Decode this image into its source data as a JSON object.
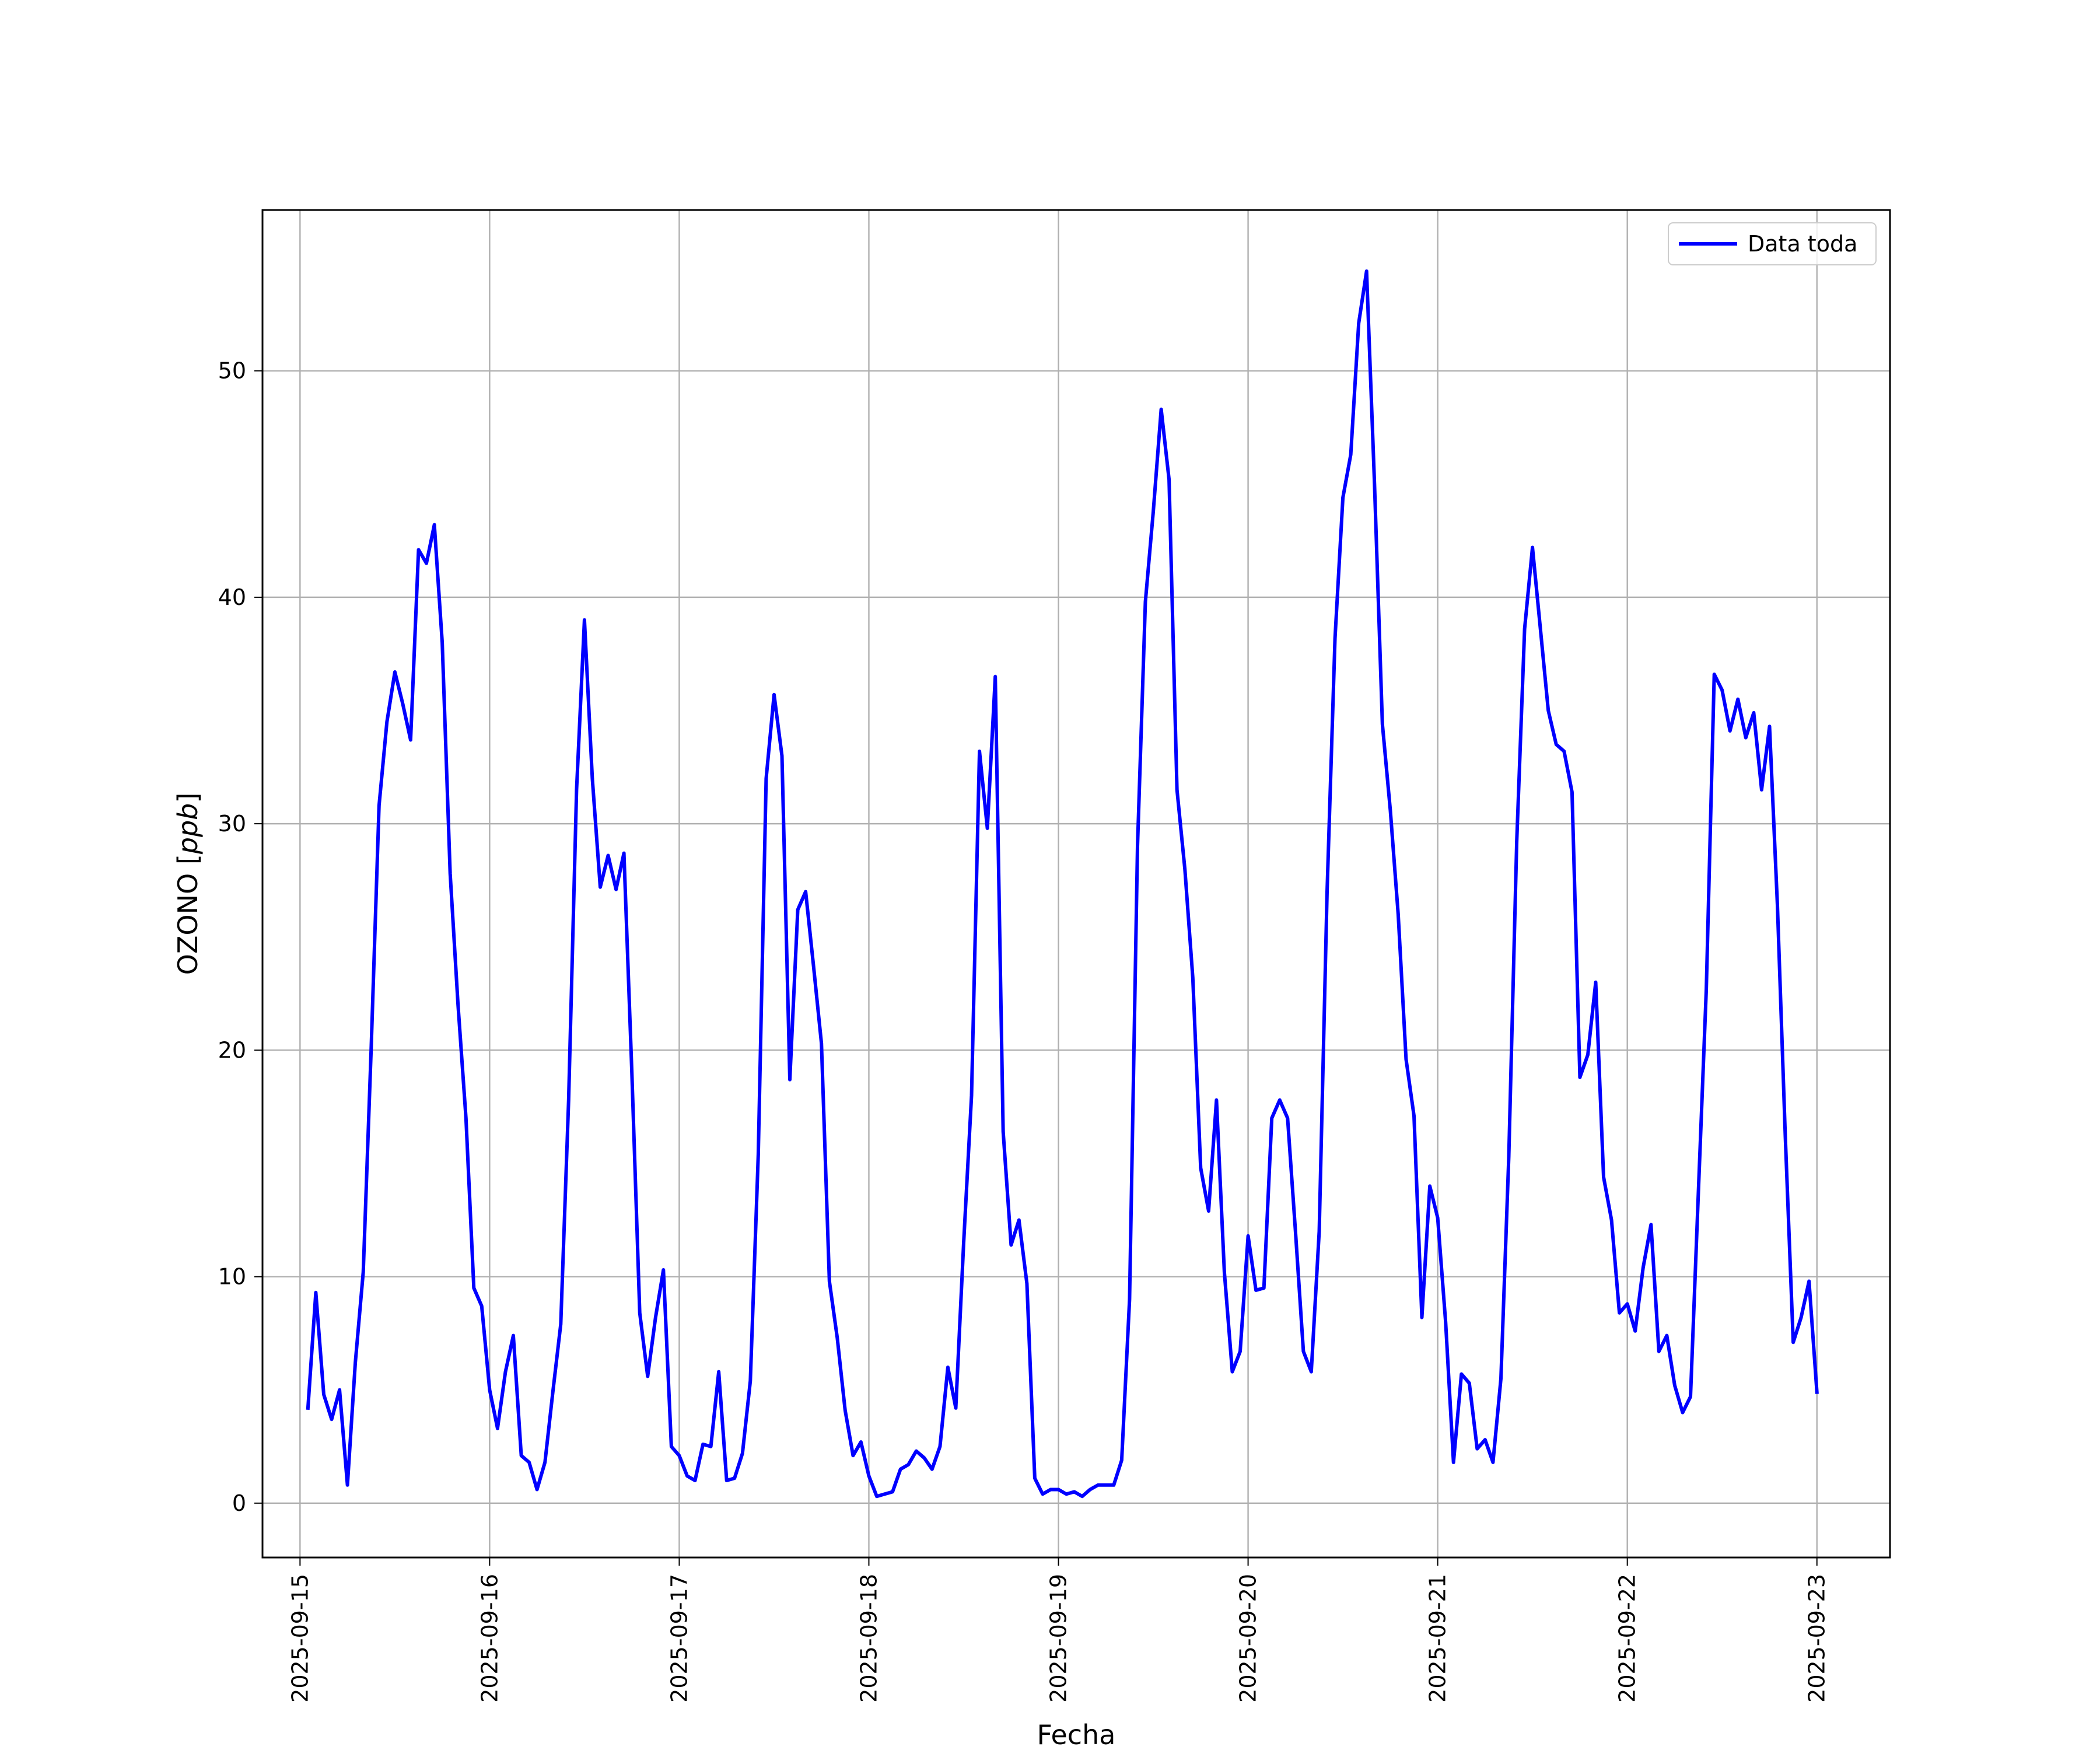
{
  "chart_data": {
    "type": "line",
    "title": "",
    "xlabel": "Fecha",
    "ylabel_prefix": "OZONO [",
    "ylabel_unit": "ppb",
    "ylabel_suffix": "]",
    "x_range": [
      "2025-09-14T19:15:00",
      "2025-09-23T09:15:00"
    ],
    "ylim": [
      -2.4,
      57.1
    ],
    "x_ticks": [
      "2025-09-15",
      "2025-09-16",
      "2025-09-17",
      "2025-09-18",
      "2025-09-19",
      "2025-09-20",
      "2025-09-21",
      "2025-09-22",
      "2025-09-23"
    ],
    "y_ticks": [
      0,
      10,
      20,
      30,
      40,
      50
    ],
    "grid": true,
    "legend_position": "top-right",
    "series": [
      {
        "name": "Data toda",
        "color": "#0000ff",
        "start": "2025-09-15T01:00:00",
        "step_hours": 1,
        "values": [
          4.2,
          9.3,
          4.8,
          3.7,
          5.0,
          0.8,
          6.2,
          10.2,
          20.0,
          30.8,
          34.5,
          36.7,
          35.3,
          33.7,
          42.1,
          41.5,
          43.2,
          38.0,
          27.8,
          22.0,
          17.0,
          9.5,
          8.7,
          5.0,
          3.3,
          5.8,
          7.4,
          2.1,
          1.8,
          0.6,
          1.8,
          4.9,
          7.9,
          17.8,
          31.5,
          39.0,
          32.0,
          27.2,
          28.6,
          27.1,
          28.7,
          19.0,
          8.4,
          5.6,
          8.2,
          10.3,
          2.5,
          2.1,
          1.2,
          1.0,
          2.6,
          2.5,
          5.8,
          1.0,
          1.1,
          2.2,
          5.4,
          15.4,
          32.0,
          35.7,
          33.0,
          18.7,
          26.2,
          27.0,
          23.7,
          20.3,
          9.8,
          7.3,
          4.1,
          2.1,
          2.7,
          1.2,
          0.3,
          0.4,
          0.5,
          1.5,
          1.7,
          2.3,
          2.0,
          1.5,
          2.5,
          6.0,
          4.2,
          11.5,
          18.0,
          33.2,
          29.8,
          36.5,
          16.4,
          11.4,
          12.5,
          9.7,
          1.1,
          0.4,
          0.6,
          0.6,
          0.4,
          0.5,
          0.3,
          0.6,
          0.8,
          0.8,
          0.8,
          1.9,
          9.0,
          29.0,
          39.8,
          43.8,
          48.3,
          45.2,
          31.5,
          28.0,
          23.2,
          14.8,
          12.9,
          17.8,
          10.2,
          5.8,
          6.7,
          11.8,
          9.4,
          9.5,
          17.0,
          17.8,
          17.0,
          12.0,
          6.7,
          5.8,
          12.0,
          27.0,
          38.2,
          44.4,
          46.3,
          52.1,
          54.4,
          45.0,
          34.4,
          30.6,
          26.0,
          19.6,
          17.1,
          8.2,
          14.0,
          12.6,
          8.0,
          1.8,
          5.7,
          5.3,
          2.4,
          2.8,
          1.8,
          5.5,
          15.3,
          29.2,
          38.6,
          42.2,
          38.6,
          35.0,
          33.5,
          33.2,
          31.4,
          18.8,
          19.8,
          23.0,
          14.4,
          12.5,
          8.4,
          8.8,
          7.6,
          10.4,
          12.3,
          6.7,
          7.4,
          5.2,
          4.0,
          4.7,
          13.8,
          22.7,
          36.6,
          35.9,
          34.1,
          35.5,
          33.8,
          34.9,
          31.5,
          34.3,
          26.4,
          16.2,
          7.1,
          8.2,
          9.8,
          4.9
        ]
      }
    ]
  }
}
